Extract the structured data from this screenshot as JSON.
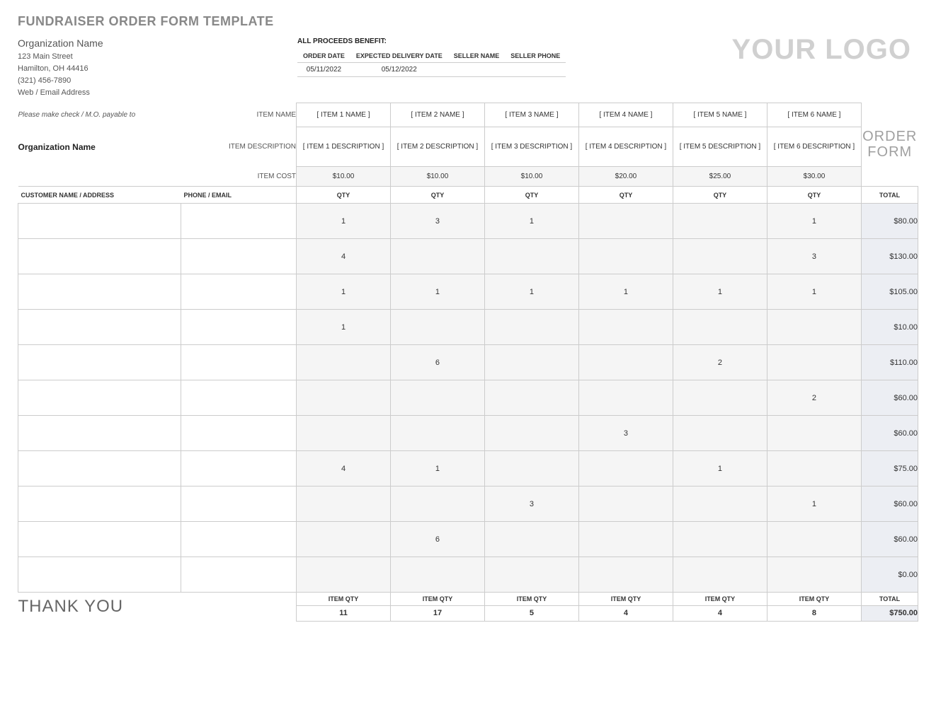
{
  "pageTitle": "FUNDRAISER ORDER FORM TEMPLATE",
  "org": {
    "name": "Organization Name",
    "street": "123 Main Street",
    "cityStateZip": "Hamilton, OH 44416",
    "phone": "(321) 456-7890",
    "web": "Web / Email Address"
  },
  "benefitLabel": "ALL PROCEEDS BENEFIT:",
  "logoText": "YOUR LOGO",
  "seller": {
    "headers": {
      "orderDate": "ORDER DATE",
      "expected": "EXPECTED DELIVERY DATE",
      "sellerName": "SELLER NAME",
      "sellerPhone": "SELLER PHONE"
    },
    "orderDate": "05/11/2022",
    "expected": "05/12/2022",
    "sellerName": "",
    "sellerPhone": ""
  },
  "payable": {
    "please": "Please make check / M.O. payable to",
    "org": "Organization Name"
  },
  "rowLabels": {
    "itemName": "ITEM NAME",
    "itemDesc": "ITEM DESCRIPTION",
    "itemCost": "ITEM COST",
    "customer": "CUSTOMER NAME / ADDRESS",
    "phone": "PHONE / EMAIL",
    "qty": "QTY",
    "total": "TOTAL",
    "itemQty": "ITEM QTY"
  },
  "orderFormLabel1": "ORDER",
  "orderFormLabel2": "FORM",
  "items": [
    {
      "name": "[ ITEM 1 NAME ]",
      "desc": "[ ITEM 1 DESCRIPTION ]",
      "cost": "$10.00"
    },
    {
      "name": "[ ITEM 2 NAME ]",
      "desc": "[ ITEM 2 DESCRIPTION ]",
      "cost": "$10.00"
    },
    {
      "name": "[ ITEM 3 NAME ]",
      "desc": "[ ITEM 3 DESCRIPTION ]",
      "cost": "$10.00"
    },
    {
      "name": "[ ITEM 4 NAME ]",
      "desc": "[ ITEM 4 DESCRIPTION ]",
      "cost": "$20.00"
    },
    {
      "name": "[ ITEM 5 NAME ]",
      "desc": "[ ITEM 5 DESCRIPTION ]",
      "cost": "$25.00"
    },
    {
      "name": "[ ITEM 6 NAME ]",
      "desc": "[ ITEM 6 DESCRIPTION ]",
      "cost": "$30.00"
    }
  ],
  "rows": [
    {
      "q": [
        "1",
        "3",
        "1",
        "",
        "",
        "1"
      ],
      "total": "$80.00"
    },
    {
      "q": [
        "4",
        "",
        "",
        "",
        "",
        "3"
      ],
      "total": "$130.00"
    },
    {
      "q": [
        "1",
        "1",
        "1",
        "1",
        "1",
        "1"
      ],
      "total": "$105.00"
    },
    {
      "q": [
        "1",
        "",
        "",
        "",
        "",
        ""
      ],
      "total": "$10.00"
    },
    {
      "q": [
        "",
        "6",
        "",
        "",
        "2",
        ""
      ],
      "total": "$110.00"
    },
    {
      "q": [
        "",
        "",
        "",
        "",
        "",
        "2"
      ],
      "total": "$60.00"
    },
    {
      "q": [
        "",
        "",
        "",
        "3",
        "",
        ""
      ],
      "total": "$60.00"
    },
    {
      "q": [
        "4",
        "1",
        "",
        "",
        "1",
        ""
      ],
      "total": "$75.00"
    },
    {
      "q": [
        "",
        "",
        "3",
        "",
        "",
        "1"
      ],
      "total": "$60.00"
    },
    {
      "q": [
        "",
        "6",
        "",
        "",
        "",
        ""
      ],
      "total": "$60.00"
    },
    {
      "q": [
        "",
        "",
        "",
        "",
        "",
        ""
      ],
      "total": "$0.00"
    }
  ],
  "colTotals": [
    "11",
    "17",
    "5",
    "4",
    "4",
    "8"
  ],
  "grandTotal": "$750.00",
  "thankYou": "THANK YOU",
  "colors": {
    "totalBg": "#eceef3",
    "qtyBg": "#f5f5f5",
    "border": "#cccccc",
    "titleGrey": "#888888",
    "logoGrey": "#d0d0d0"
  }
}
